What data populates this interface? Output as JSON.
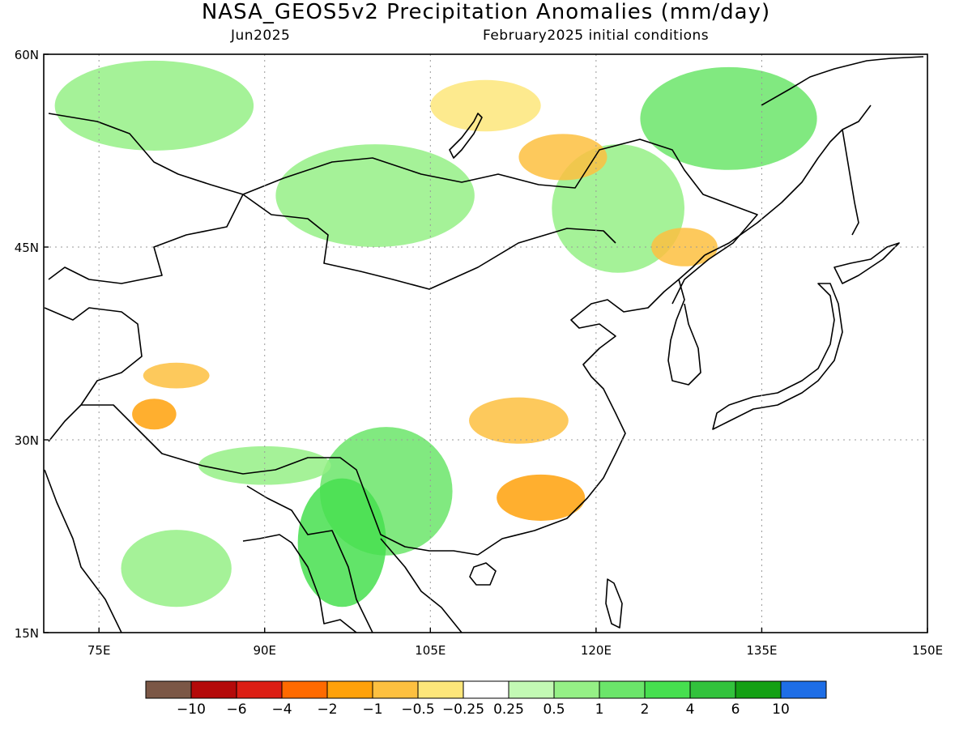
{
  "header": {
    "title": "NASA_GEOS5v2 Precipitation Anomalies (mm/day)",
    "subtitle_left": "Jun2025",
    "subtitle_right": "February2025 initial conditions"
  },
  "map": {
    "lon_range": [
      70,
      150
    ],
    "lat_range": [
      15,
      60
    ],
    "lon_ticks": [
      "75E",
      "90E",
      "105E",
      "120E",
      "135E",
      "150E"
    ],
    "lon_tick_values": [
      75,
      90,
      105,
      120,
      135,
      150
    ],
    "lat_ticks": [
      "15N",
      "30N",
      "45N",
      "60N"
    ],
    "lat_tick_values": [
      15,
      30,
      45,
      60
    ],
    "grid": true
  },
  "colorbar": {
    "colors": [
      "#7b5746",
      "#b40a0a",
      "#dc1e14",
      "#ff6a00",
      "#ffa10a",
      "#fdc040",
      "#fde67a",
      "#ffffff",
      "#c3f9b4",
      "#95f086",
      "#6be56a",
      "#46df4f",
      "#32c23c",
      "#14a014",
      "#1e6ee6"
    ],
    "labels": [
      "-10",
      "-6",
      "-4",
      "-2",
      "-1",
      "-0.5",
      "-0.25",
      "0.25",
      "0.5",
      "1",
      "2",
      "4",
      "6",
      "10"
    ]
  },
  "anomaly_regions": [
    {
      "name": "mongolia-siberia-wet",
      "lon": 100,
      "lat": 49,
      "rx": 9,
      "ry": 4,
      "color": "#95f086"
    },
    {
      "name": "northwest-siberia-wet",
      "lon": 80,
      "lat": 56,
      "rx": 9,
      "ry": 3.5,
      "color": "#95f086"
    },
    {
      "name": "northeast-china-wet",
      "lon": 122,
      "lat": 48,
      "rx": 6,
      "ry": 5,
      "color": "#95f086"
    },
    {
      "name": "far-east-wet",
      "lon": 132,
      "lat": 55,
      "rx": 8,
      "ry": 4,
      "color": "#6be56a"
    },
    {
      "name": "baikal-dry",
      "lon": 110,
      "lat": 56,
      "rx": 5,
      "ry": 2,
      "color": "#fde67a"
    },
    {
      "name": "amur-dry",
      "lon": 117,
      "lat": 52,
      "rx": 4,
      "ry": 1.8,
      "color": "#fdc040"
    },
    {
      "name": "southwest-china-wet",
      "lon": 101,
      "lat": 26,
      "rx": 6,
      "ry": 5,
      "color": "#6be56a"
    },
    {
      "name": "myanmar-wet",
      "lon": 97,
      "lat": 22,
      "rx": 4,
      "ry": 5,
      "color": "#46df4f"
    },
    {
      "name": "himalaya-wet",
      "lon": 90,
      "lat": 28,
      "rx": 6,
      "ry": 1.5,
      "color": "#95f086"
    },
    {
      "name": "south-china-dry",
      "lon": 115,
      "lat": 25.5,
      "rx": 4,
      "ry": 1.8,
      "color": "#ffa10a"
    },
    {
      "name": "yangtze-dry",
      "lon": 113,
      "lat": 31.5,
      "rx": 4.5,
      "ry": 1.8,
      "color": "#fdc040"
    },
    {
      "name": "kashmir-dry",
      "lon": 80,
      "lat": 32,
      "rx": 2,
      "ry": 1.2,
      "color": "#ffa10a"
    },
    {
      "name": "west-tibet-dry",
      "lon": 82,
      "lat": 35,
      "rx": 3,
      "ry": 1,
      "color": "#fdc040"
    },
    {
      "name": "korea-manchuria-dry",
      "lon": 128,
      "lat": 45,
      "rx": 3,
      "ry": 1.5,
      "color": "#fdc040"
    },
    {
      "name": "india-wet",
      "lon": 82,
      "lat": 20,
      "rx": 5,
      "ry": 3,
      "color": "#95f086"
    }
  ]
}
